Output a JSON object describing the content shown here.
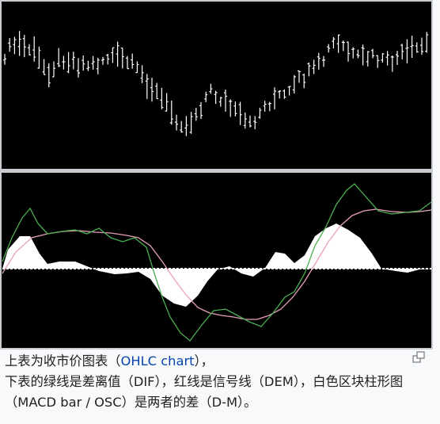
{
  "figure": {
    "magnify_icon": "enlarge-icon",
    "caption": {
      "part1": "上表为收市价图表（",
      "link": "OHLC chart",
      "part2": "），",
      "part3": "下表的绿线是差离值（DIF），红线是信号线（DEM），白色区块柱形图（MACD bar / OSC）是两者的差（D-M）。"
    }
  },
  "colors": {
    "background": "#000000",
    "ohlc": "#ffffff",
    "dif": "#4caf50",
    "dem": "#e8a0b8",
    "osc": "#ffffff",
    "divider": "#c8ccd1",
    "link": "#0645ad"
  }
}
